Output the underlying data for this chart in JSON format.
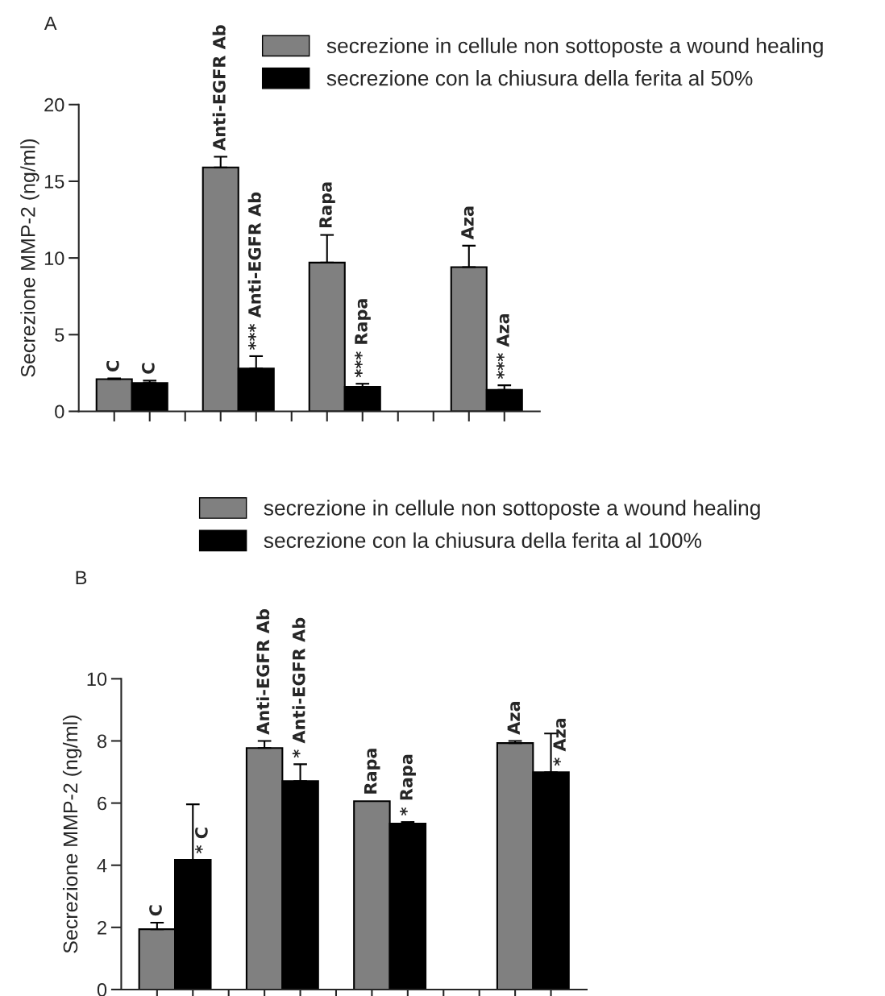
{
  "chart_data": [
    {
      "type": "bar",
      "title": "A",
      "ylabel": "Secrezione MMP-2 (ng/ml)",
      "categories": [
        null,
        null,
        null,
        null,
        null,
        null,
        null,
        null,
        null,
        null,
        null,
        null
      ],
      "ylim": [
        0,
        20
      ],
      "yticks": [
        0,
        5,
        10,
        15,
        20
      ],
      "tick_labels": "y",
      "legend": "top right",
      "grid": false,
      "series": [
        {
          "name": "secrezione in cellule non sottoposte a wound healing",
          "color": "#808080",
          "values": [
            2.1,
            null,
            null,
            15.9,
            null,
            null,
            9.7,
            null,
            null,
            null,
            9.4,
            null
          ],
          "errors": [
            0.05,
            null,
            null,
            0.7,
            null,
            null,
            1.8,
            null,
            null,
            null,
            1.4,
            null
          ],
          "value_labels": [
            "C",
            null,
            null,
            "Anti-EGFR Ab",
            null,
            null,
            "Rapa",
            null,
            null,
            null,
            "Aza",
            null
          ]
        },
        {
          "name": "secrezione con la chiusura della ferita al 50%",
          "color": "#000000",
          "values": [
            null,
            1.85,
            null,
            null,
            2.8,
            null,
            null,
            1.6,
            null,
            null,
            null,
            1.4
          ],
          "errors": [
            null,
            0.15,
            null,
            null,
            0.8,
            null,
            null,
            0.2,
            null,
            null,
            null,
            0.3
          ],
          "value_labels": [
            null,
            "C",
            null,
            null,
            "*** Anti-EGFR Ab",
            null,
            null,
            "*** Rapa",
            null,
            null,
            null,
            "*** Aza"
          ]
        }
      ]
    },
    {
      "type": "bar",
      "title": "B",
      "ylabel": "Secrezione MMP-2 (ng/ml)",
      "categories": [
        null,
        null,
        null,
        null,
        null,
        null,
        null,
        null,
        null,
        null,
        null,
        null
      ],
      "ylim": [
        0,
        10
      ],
      "yticks": [
        0,
        2,
        4,
        6,
        8,
        10
      ],
      "tick_labels": "y",
      "legend": "top",
      "grid": false,
      "series": [
        {
          "name": "secrezione in cellule non sottoposte a wound healing",
          "color": "#808080",
          "values": [
            1.94,
            null,
            null,
            7.77,
            null,
            null,
            6.06,
            null,
            null,
            null,
            7.93,
            null
          ],
          "errors": [
            0.21,
            null,
            null,
            0.23,
            null,
            null,
            null,
            null,
            null,
            null,
            0.07,
            null
          ],
          "value_labels": [
            "C",
            null,
            null,
            "Anti-EGFR Ab",
            null,
            null,
            "Rapa",
            null,
            null,
            null,
            "Aza",
            null
          ]
        },
        {
          "name": "secrezione con la chiusura della ferita al 100%",
          "color": "#000000",
          "values": [
            null,
            4.17,
            null,
            null,
            6.71,
            null,
            null,
            5.34,
            null,
            null,
            null,
            6.99
          ],
          "errors": [
            null,
            1.79,
            null,
            null,
            0.54,
            null,
            null,
            0.05,
            null,
            null,
            null,
            1.25
          ],
          "value_labels": [
            null,
            "* C",
            null,
            null,
            "* Anti-EGFR Ab",
            null,
            null,
            "* Rapa",
            null,
            null,
            null,
            "* Aza"
          ]
        }
      ]
    }
  ]
}
